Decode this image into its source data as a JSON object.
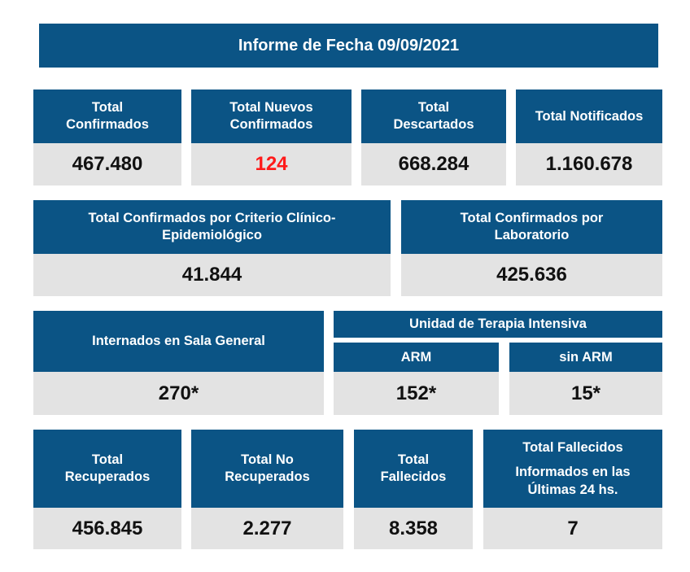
{
  "title": "Informe de Fecha 09/09/2021",
  "colors": {
    "header_bg": "#0b5485",
    "value_bg": "#e3e3e3",
    "highlight": "#ff1a1a"
  },
  "row1": [
    {
      "label_lines": [
        "Total",
        "Confirmados"
      ],
      "value": "467.480"
    },
    {
      "label_lines": [
        "Total Nuevos",
        "Confirmados"
      ],
      "value": "124"
    },
    {
      "label_lines": [
        "Total",
        "Descartados"
      ],
      "value": "668.284"
    },
    {
      "label_lines": [
        "Total Notificados"
      ],
      "value": "1.160.678"
    }
  ],
  "row2": [
    {
      "label_lines": [
        "Total Confirmados por Criterio Clínico-",
        "Epidemiológico"
      ],
      "value": "41.844"
    },
    {
      "label_lines": [
        "Total Confirmados por",
        "Laboratorio"
      ],
      "value": "425.636"
    }
  ],
  "row3": {
    "sala_general": {
      "label": "Internados en Sala General",
      "value": "270*"
    },
    "uti": {
      "label": "Unidad de Terapia Intensiva",
      "arm": {
        "label": "ARM",
        "value": "152*"
      },
      "sin_arm": {
        "label": "sin ARM",
        "value": "15*"
      }
    }
  },
  "row4": [
    {
      "label_lines": [
        "Total",
        "Recuperados"
      ],
      "value": "456.845"
    },
    {
      "label_lines": [
        "Total No",
        "Recuperados"
      ],
      "value": "2.277"
    },
    {
      "label_lines": [
        "Total",
        "Fallecidos"
      ],
      "value": "8.358"
    },
    {
      "label_lines": [
        "Total Fallecidos",
        "Informados en las",
        "Últimas 24 hs."
      ],
      "value": "7"
    }
  ]
}
